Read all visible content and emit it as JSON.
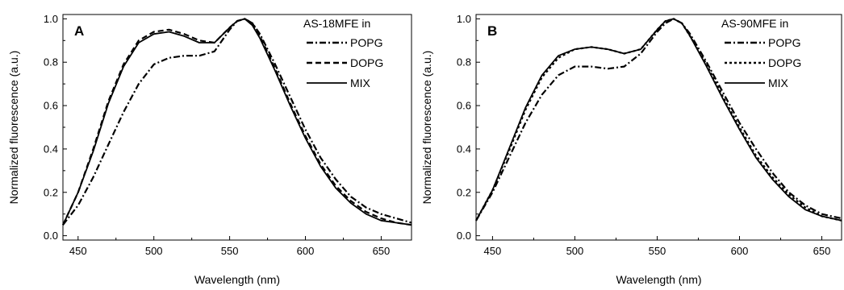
{
  "chart_data": [
    {
      "type": "line",
      "panel_label": "A",
      "xlabel": "Wavelength (nm)",
      "ylabel": "Normalized fluorescence (a.u.)",
      "xlim": [
        440,
        670
      ],
      "ylim": [
        -0.02,
        1.02
      ],
      "xticks": [
        450,
        500,
        550,
        600,
        650
      ],
      "yticks": [
        0.0,
        0.2,
        0.4,
        0.6,
        0.8,
        1.0
      ],
      "grid": false,
      "legend": {
        "title": "AS-18MFE in",
        "position": "top-right"
      },
      "series": [
        {
          "name": "POPG",
          "style": "dash-dot",
          "x": [
            440,
            450,
            460,
            470,
            480,
            490,
            500,
            510,
            520,
            530,
            540,
            550,
            555,
            560,
            565,
            570,
            580,
            590,
            600,
            610,
            620,
            630,
            640,
            650,
            660,
            670
          ],
          "y": [
            0.05,
            0.14,
            0.27,
            0.42,
            0.57,
            0.7,
            0.79,
            0.82,
            0.83,
            0.83,
            0.85,
            0.95,
            0.99,
            1.0,
            0.98,
            0.93,
            0.79,
            0.64,
            0.49,
            0.36,
            0.26,
            0.18,
            0.13,
            0.1,
            0.08,
            0.06
          ]
        },
        {
          "name": "DOPG",
          "style": "dash",
          "x": [
            440,
            450,
            460,
            470,
            480,
            490,
            500,
            510,
            520,
            530,
            540,
            550,
            555,
            560,
            565,
            570,
            580,
            590,
            600,
            610,
            620,
            630,
            640,
            650,
            660,
            670
          ],
          "y": [
            0.05,
            0.2,
            0.4,
            0.62,
            0.79,
            0.9,
            0.94,
            0.95,
            0.93,
            0.9,
            0.89,
            0.96,
            0.99,
            1.0,
            0.98,
            0.92,
            0.77,
            0.61,
            0.46,
            0.33,
            0.23,
            0.16,
            0.11,
            0.08,
            0.06,
            0.05
          ]
        },
        {
          "name": "MIX",
          "style": "solid",
          "x": [
            440,
            450,
            460,
            470,
            480,
            490,
            500,
            510,
            520,
            530,
            540,
            550,
            555,
            560,
            565,
            570,
            580,
            590,
            600,
            610,
            620,
            630,
            640,
            650,
            660,
            670
          ],
          "y": [
            0.05,
            0.2,
            0.39,
            0.61,
            0.78,
            0.89,
            0.93,
            0.94,
            0.92,
            0.89,
            0.89,
            0.96,
            0.99,
            1.0,
            0.97,
            0.91,
            0.76,
            0.6,
            0.45,
            0.32,
            0.22,
            0.15,
            0.1,
            0.07,
            0.06,
            0.05
          ]
        }
      ]
    },
    {
      "type": "line",
      "panel_label": "B",
      "xlabel": "Wavelength (nm)",
      "ylabel": "Normalized fluorescence (a.u.)",
      "xlim": [
        440,
        662
      ],
      "ylim": [
        -0.02,
        1.02
      ],
      "xticks": [
        450,
        500,
        550,
        600,
        650
      ],
      "yticks": [
        0.0,
        0.2,
        0.4,
        0.6,
        0.8,
        1.0
      ],
      "grid": false,
      "legend": {
        "title": "AS-90MFE in",
        "position": "top-right"
      },
      "series": [
        {
          "name": "POPG",
          "style": "dash-dot",
          "x": [
            440,
            450,
            460,
            470,
            480,
            490,
            500,
            510,
            520,
            530,
            540,
            550,
            555,
            560,
            565,
            570,
            580,
            590,
            600,
            610,
            620,
            630,
            640,
            650,
            662
          ],
          "y": [
            0.07,
            0.2,
            0.36,
            0.52,
            0.65,
            0.74,
            0.78,
            0.78,
            0.77,
            0.78,
            0.84,
            0.94,
            0.98,
            1.0,
            0.98,
            0.93,
            0.8,
            0.66,
            0.52,
            0.4,
            0.29,
            0.2,
            0.14,
            0.1,
            0.08
          ]
        },
        {
          "name": "DOPG",
          "style": "dot",
          "x": [
            440,
            450,
            460,
            470,
            480,
            490,
            500,
            510,
            520,
            530,
            540,
            550,
            555,
            560,
            565,
            570,
            580,
            590,
            600,
            610,
            620,
            630,
            640,
            650,
            662
          ],
          "y": [
            0.07,
            0.21,
            0.39,
            0.58,
            0.73,
            0.82,
            0.86,
            0.87,
            0.86,
            0.84,
            0.86,
            0.95,
            0.99,
            1.0,
            0.98,
            0.92,
            0.79,
            0.64,
            0.5,
            0.37,
            0.27,
            0.19,
            0.13,
            0.09,
            0.07
          ]
        },
        {
          "name": "MIX",
          "style": "solid",
          "x": [
            440,
            450,
            460,
            470,
            480,
            490,
            500,
            510,
            520,
            530,
            540,
            550,
            555,
            560,
            565,
            570,
            580,
            590,
            600,
            610,
            620,
            630,
            640,
            650,
            662
          ],
          "y": [
            0.07,
            0.21,
            0.4,
            0.59,
            0.74,
            0.83,
            0.86,
            0.87,
            0.86,
            0.84,
            0.86,
            0.95,
            0.99,
            1.0,
            0.98,
            0.92,
            0.78,
            0.63,
            0.49,
            0.36,
            0.26,
            0.18,
            0.12,
            0.09,
            0.07
          ]
        }
      ]
    }
  ]
}
